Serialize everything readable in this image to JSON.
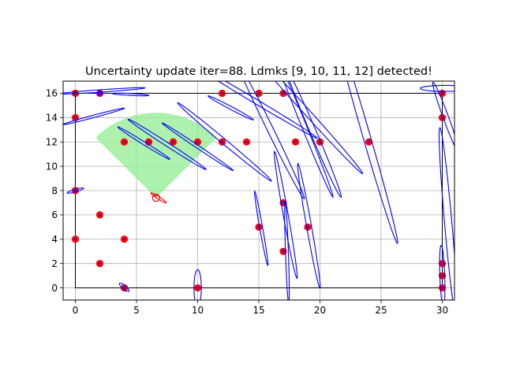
{
  "chart_data": {
    "type": "scatter",
    "title": "Uncertainty update iter=88. Ldmks [9, 10, 11, 12] detected!",
    "xlabel": "",
    "ylabel": "",
    "xlim": [
      -1,
      31
    ],
    "ylim": [
      -1,
      17
    ],
    "xticks": [
      0,
      5,
      10,
      15,
      20,
      25,
      30
    ],
    "yticks": [
      0,
      2,
      4,
      6,
      8,
      10,
      12,
      14,
      16
    ],
    "grid": true,
    "legend": "none",
    "colors": {
      "landmark": "#ff0000",
      "landmark_inner": "#1f1fcc",
      "ellipse": "#0000ff",
      "fov": "#90ee90",
      "boundary": "#000000",
      "grid": "#b0b0b0",
      "robot": "#ff0000"
    },
    "landmarks": [
      {
        "x": 0,
        "y": 16
      },
      {
        "x": 2,
        "y": 16
      },
      {
        "x": 12,
        "y": 16
      },
      {
        "x": 15,
        "y": 16
      },
      {
        "x": 17,
        "y": 16
      },
      {
        "x": 30,
        "y": 16
      },
      {
        "x": 0,
        "y": 14
      },
      {
        "x": 30,
        "y": 14
      },
      {
        "x": 4,
        "y": 12
      },
      {
        "x": 6,
        "y": 12
      },
      {
        "x": 8,
        "y": 12
      },
      {
        "x": 10,
        "y": 12
      },
      {
        "x": 12,
        "y": 12
      },
      {
        "x": 14,
        "y": 12
      },
      {
        "x": 18,
        "y": 12
      },
      {
        "x": 20,
        "y": 12
      },
      {
        "x": 24,
        "y": 12
      },
      {
        "x": 0,
        "y": 8
      },
      {
        "x": 17,
        "y": 7
      },
      {
        "x": 2,
        "y": 6
      },
      {
        "x": 15,
        "y": 5
      },
      {
        "x": 19,
        "y": 5
      },
      {
        "x": 0,
        "y": 4
      },
      {
        "x": 4,
        "y": 4
      },
      {
        "x": 17,
        "y": 3
      },
      {
        "x": 2,
        "y": 2
      },
      {
        "x": 30,
        "y": 2
      },
      {
        "x": 30,
        "y": 1
      },
      {
        "x": 4,
        "y": 0
      },
      {
        "x": 10,
        "y": 0
      },
      {
        "x": 30,
        "y": 0
      }
    ],
    "landmark_ellipses": [
      {
        "cx": 2.2,
        "cy": 16.2,
        "rx": 3.5,
        "ry": 0.1,
        "angle": 4
      },
      {
        "cx": 4.5,
        "cy": 15.9,
        "rx": 1.5,
        "ry": 0.08,
        "angle": -3
      },
      {
        "cx": 1.5,
        "cy": 14.1,
        "rx": 2.6,
        "ry": 0.1,
        "angle": 15
      },
      {
        "cx": 2.0,
        "cy": 16.0,
        "rx": 0.2,
        "ry": 0.15,
        "angle": 0
      },
      {
        "cx": 0,
        "cy": 8,
        "rx": 0.7,
        "ry": 0.1,
        "angle": 16
      },
      {
        "cx": 5.6,
        "cy": 11.9,
        "rx": 2.5,
        "ry": 0.12,
        "angle": -32
      },
      {
        "cx": 7.5,
        "cy": 11.8,
        "rx": 3.8,
        "ry": 0.15,
        "angle": -33
      },
      {
        "cx": 10.0,
        "cy": 11.6,
        "rx": 3.5,
        "ry": 0.12,
        "angle": -34
      },
      {
        "cx": 12.2,
        "cy": 12.0,
        "rx": 5.0,
        "ry": 0.2,
        "angle": -40
      },
      {
        "cx": 12.7,
        "cy": 14.8,
        "rx": 2.1,
        "ry": 0.12,
        "angle": -28
      },
      {
        "cx": 14.8,
        "cy": 15.3,
        "rx": 5.8,
        "ry": 0.18,
        "angle": -31
      },
      {
        "cx": 16.0,
        "cy": 12.9,
        "rx": 6.2,
        "ry": 0.25,
        "angle": -64
      },
      {
        "cx": 18.8,
        "cy": 14.6,
        "rx": 7.0,
        "ry": 0.25,
        "angle": -48
      },
      {
        "cx": 19.5,
        "cy": 12.7,
        "rx": 5.7,
        "ry": 0.25,
        "angle": -67
      },
      {
        "cx": 18.7,
        "cy": 13.3,
        "rx": 6.3,
        "ry": 0.2,
        "angle": -68
      },
      {
        "cx": 23.8,
        "cy": 12.5,
        "rx": 9.2,
        "ry": 0.3,
        "angle": -74
      },
      {
        "cx": 15.2,
        "cy": 4.9,
        "rx": 3.1,
        "ry": 0.12,
        "angle": -80
      },
      {
        "cx": 17.2,
        "cy": 6.0,
        "rx": 5.3,
        "ry": 0.2,
        "angle": -80
      },
      {
        "cx": 19.1,
        "cy": 5.1,
        "rx": 5.2,
        "ry": 0.2,
        "angle": -80
      },
      {
        "cx": 17.3,
        "cy": 2.9,
        "rx": 4.2,
        "ry": 0.12,
        "angle": -88
      },
      {
        "cx": 30.3,
        "cy": 14.0,
        "rx": 3.1,
        "ry": 0.22,
        "angle": -70
      },
      {
        "cx": 30.2,
        "cy": 16.4,
        "rx": 2.0,
        "ry": 0.25,
        "angle": 0
      },
      {
        "cx": 30.5,
        "cy": 5.2,
        "rx": 8.0,
        "ry": 0.3,
        "angle": -85
      },
      {
        "cx": 30.0,
        "cy": 1.0,
        "rx": 2.5,
        "ry": 0.2,
        "angle": -88
      },
      {
        "cx": 10.0,
        "cy": 0.0,
        "rx": 1.5,
        "ry": 0.3,
        "angle": -90
      },
      {
        "cx": 4.0,
        "cy": 0.05,
        "rx": 0.5,
        "ry": 0.15,
        "angle": -40
      }
    ],
    "robot": {
      "x": 6.6,
      "y": 7.4,
      "theta_deg": 118
    },
    "robot_ellipse": {
      "cx": 6.8,
      "cy": 7.4,
      "rx": 0.75,
      "ry": 0.1,
      "angle": -33
    },
    "fov": {
      "cx": 6.6,
      "cy": 7.4,
      "radius": 7.0,
      "start_deg": 45,
      "end_deg": 135
    },
    "boundary": {
      "x0": 0,
      "x1": 30,
      "y0": 0,
      "y1": 16
    }
  }
}
